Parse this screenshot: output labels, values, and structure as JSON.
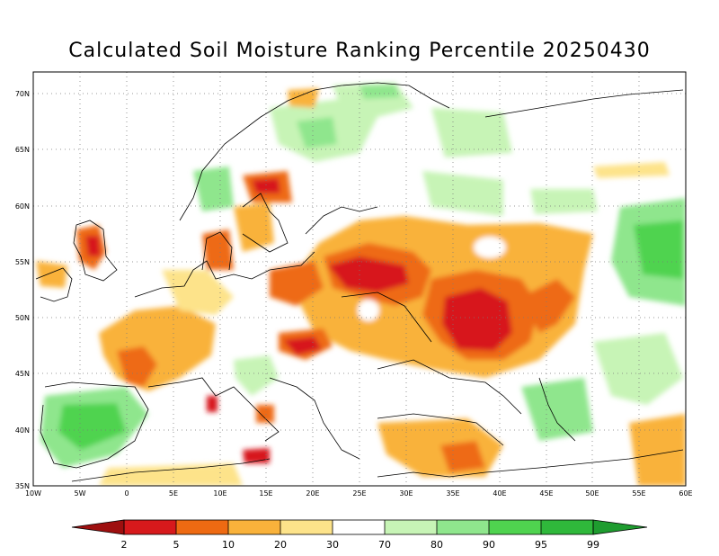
{
  "title": "Calculated Soil Moisture Ranking Percentile 20250430",
  "map": {
    "lat_labels": [
      "70N",
      "65N",
      "60N",
      "55N",
      "50N",
      "45N",
      "40N",
      "35N"
    ],
    "lon_labels": [
      "10W",
      "5W",
      "0",
      "5E",
      "10E",
      "15E",
      "20E",
      "25E",
      "30E",
      "35E",
      "40E",
      "45E",
      "50E",
      "55E",
      "60E"
    ],
    "lat_range": [
      35,
      72
    ],
    "lon_range": [
      -10,
      60
    ],
    "grid": "dotted"
  },
  "colorbar": {
    "labels": [
      "2",
      "5",
      "10",
      "20",
      "30",
      "70",
      "80",
      "90",
      "95",
      "99"
    ],
    "colors": [
      "#9e0f0f",
      "#d7191c",
      "#ee6a12",
      "#f9b23b",
      "#fde38a",
      "#ffffff",
      "#c7f4b6",
      "#8fe68d",
      "#4fd34f",
      "#2fb83b",
      "#1e9c2f"
    ]
  }
}
